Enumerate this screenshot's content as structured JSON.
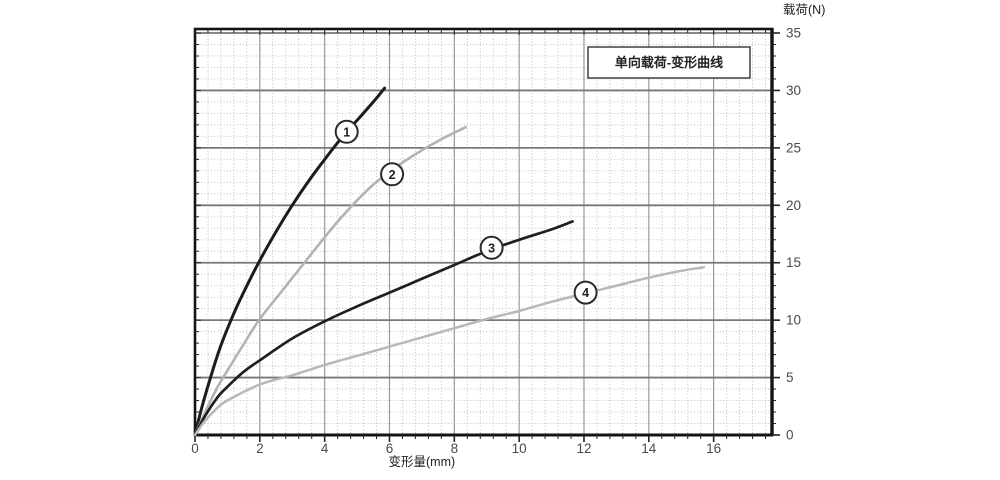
{
  "page": {
    "background": "#ffffff"
  },
  "chart_data": {
    "type": "line",
    "title_box_label": "单向载荷-变形曲线",
    "xlabel": "变形量(mm)",
    "ylabel": "载荷(N)",
    "xlim": [
      0,
      17.8
    ],
    "ylim": [
      0,
      35.35
    ],
    "x_major_ticks": [
      0,
      2,
      4,
      6,
      8,
      10,
      12,
      14,
      16
    ],
    "y_major_ticks": [
      0,
      5,
      10,
      15,
      20,
      25,
      30,
      35
    ],
    "x_minor_step": 0.4,
    "y_minor_step": 1,
    "grid": "major solid + minor dotted",
    "legend_position": "numbered circles on curves",
    "series": [
      {
        "name": "curve-1",
        "label": "1",
        "color": "#1c1c1c",
        "width": 3,
        "label_pos": [
          4.68,
          26.4
        ],
        "points": [
          [
            0,
            0
          ],
          [
            0.2,
            2.3
          ],
          [
            0.5,
            5.2
          ],
          [
            0.8,
            7.8
          ],
          [
            1.2,
            10.6
          ],
          [
            1.6,
            13.0
          ],
          [
            2.0,
            15.2
          ],
          [
            2.5,
            17.7
          ],
          [
            3.0,
            20.0
          ],
          [
            3.5,
            22.1
          ],
          [
            4.0,
            24.0
          ],
          [
            4.5,
            25.8
          ],
          [
            5.0,
            27.4
          ],
          [
            5.5,
            29.0
          ],
          [
            5.85,
            30.2
          ]
        ]
      },
      {
        "name": "curve-2",
        "label": "2",
        "color": "#b3b3b3",
        "width": 2.6,
        "label_pos": [
          6.08,
          22.7
        ],
        "points": [
          [
            0,
            0
          ],
          [
            0.3,
            1.9
          ],
          [
            0.7,
            4.2
          ],
          [
            1.0,
            5.6
          ],
          [
            1.5,
            7.9
          ],
          [
            2.0,
            10.1
          ],
          [
            2.7,
            12.6
          ],
          [
            3.6,
            15.8
          ],
          [
            4.5,
            18.9
          ],
          [
            5.5,
            21.8
          ],
          [
            6.5,
            23.9
          ],
          [
            7.5,
            25.6
          ],
          [
            8.35,
            26.8
          ]
        ]
      },
      {
        "name": "curve-3",
        "label": "3",
        "color": "#1f1f1f",
        "width": 2.7,
        "label_pos": [
          9.15,
          16.3
        ],
        "points": [
          [
            0,
            0
          ],
          [
            0.3,
            1.6
          ],
          [
            0.7,
            3.3
          ],
          [
            1.0,
            4.2
          ],
          [
            1.5,
            5.5
          ],
          [
            2.0,
            6.5
          ],
          [
            3.0,
            8.4
          ],
          [
            4.0,
            9.9
          ],
          [
            5.0,
            11.2
          ],
          [
            6.0,
            12.4
          ],
          [
            7.0,
            13.6
          ],
          [
            8.0,
            14.8
          ],
          [
            9.0,
            16.0
          ],
          [
            10.0,
            17.0
          ],
          [
            11.0,
            17.9
          ],
          [
            11.65,
            18.6
          ]
        ]
      },
      {
        "name": "curve-4",
        "label": "4",
        "color": "#b8b8b8",
        "width": 2.5,
        "label_pos": [
          12.05,
          12.4
        ],
        "points": [
          [
            0,
            0
          ],
          [
            0.3,
            1.2
          ],
          [
            0.7,
            2.4
          ],
          [
            1.0,
            3.0
          ],
          [
            2.0,
            4.4
          ],
          [
            3.0,
            5.2
          ],
          [
            4.0,
            6.1
          ],
          [
            5.0,
            6.9
          ],
          [
            6.0,
            7.7
          ],
          [
            7.0,
            8.5
          ],
          [
            8.0,
            9.3
          ],
          [
            9.0,
            10.1
          ],
          [
            10.0,
            10.8
          ],
          [
            11.0,
            11.6
          ],
          [
            12.0,
            12.3
          ],
          [
            13.0,
            13.0
          ],
          [
            14.0,
            13.7
          ],
          [
            15.0,
            14.3
          ],
          [
            15.7,
            14.6
          ]
        ]
      }
    ]
  },
  "colors": {
    "grid_minor": "#bfbfbf",
    "grid_major_v": "#999999",
    "grid_major_h": "#787878",
    "frame": "#141414",
    "tick": "#222222",
    "text": "#4a4a4a",
    "title_text": "#222222",
    "circle_stroke": "#2a2a2a",
    "circle_fill": "#ffffff"
  }
}
